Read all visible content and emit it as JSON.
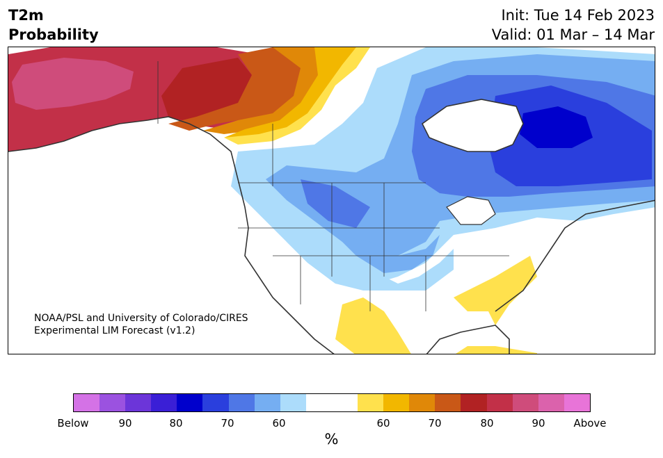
{
  "header": {
    "title_line1": "T2m",
    "title_line2": "Probability",
    "init": "Init: Tue 14 Feb 2023",
    "valid": "Valid: 01 Mar – 14 Mar"
  },
  "credit": {
    "line1": "NOAA/PSL and University of Colorado/CIRES",
    "line2": "Experimental LIM Forecast (v1.2)"
  },
  "colorbar": {
    "colors": [
      "#d472e6",
      "#9b52e0",
      "#6c35d9",
      "#3a1fd6",
      "#0000cc",
      "#2a3fdd",
      "#4f77e6",
      "#75aef2",
      "#acdcfb",
      "#ffffff",
      "#ffffff",
      "#ffe14d",
      "#f2b700",
      "#e08808",
      "#c95817",
      "#b12223",
      "#c23048",
      "#cf4c7b",
      "#db62ac",
      "#e874d8"
    ],
    "tick_labels": [
      "Below",
      "90",
      "80",
      "70",
      "60",
      "60",
      "70",
      "80",
      "90",
      "Above"
    ],
    "unit_label": "%"
  },
  "map": {
    "categories": {
      "below_80_90": "#0000cc",
      "below_70_80": "#2a3fdd",
      "below_60_70": "#4f77e6",
      "below_50_60": "#75aef2",
      "below_40_50": "#acdcfb",
      "above_40_50": "#ffe14d",
      "above_50_60": "#f2b700",
      "above_60_70": "#e08808",
      "above_70_80": "#c95817",
      "above_80_90": "#b12223",
      "above_90": "#c23048",
      "above_95": "#cf4c7b"
    },
    "land_outline_color": "#333333",
    "background": "#ffffff"
  }
}
